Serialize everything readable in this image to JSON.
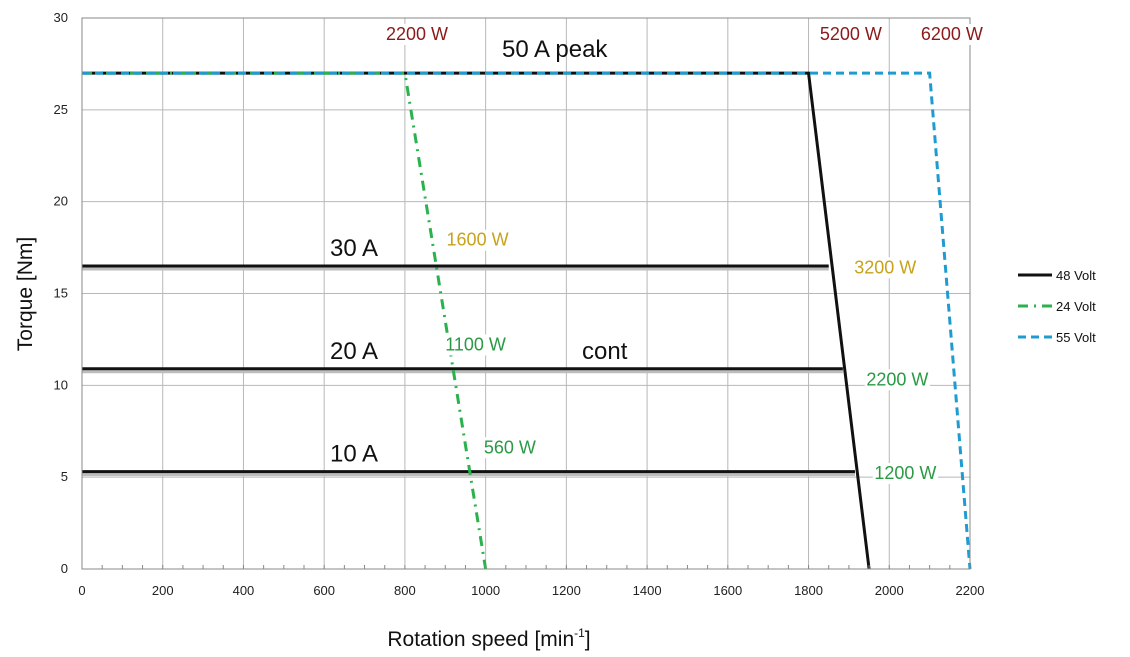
{
  "chart_data": {
    "type": "line",
    "xlabel": "Rotation speed [min",
    "xlabel_sup": "-1",
    "xlabel_close": "]",
    "ylabel": "Torque [Nm]",
    "xlim": [
      0,
      2200
    ],
    "ylim": [
      0,
      30
    ],
    "x_ticks": [
      "0",
      "200",
      "400",
      "600",
      "800",
      "1000",
      "1200",
      "1400",
      "1600",
      "1800",
      "2000",
      "2200"
    ],
    "y_ticks": [
      "0",
      "5",
      "10",
      "15",
      "20",
      "25",
      "30"
    ],
    "grid": true,
    "legend_position": "right",
    "series": [
      {
        "name": "48 Volt",
        "color": "#111111",
        "style": "solid",
        "points": [
          [
            0,
            27
          ],
          [
            1800,
            27
          ],
          [
            1950,
            0
          ]
        ]
      },
      {
        "name": "24 Volt",
        "color": "#2bb24c",
        "style": "dashdot",
        "points": [
          [
            0,
            27
          ],
          [
            800,
            27
          ],
          [
            1000,
            0
          ]
        ]
      },
      {
        "name": "55 Volt",
        "color": "#1f9bd0",
        "style": "dashed",
        "points": [
          [
            0,
            27
          ],
          [
            2100,
            27
          ],
          [
            2200,
            0
          ]
        ]
      }
    ],
    "current_lines": [
      {
        "label": "30 A",
        "y": 16.5,
        "x_end": 1850
      },
      {
        "label": "20 A",
        "y": 10.9,
        "x_end": 1885
      },
      {
        "label": "10 A",
        "y": 5.3,
        "x_end": 1915
      }
    ],
    "region_labels": {
      "peak": "50 A peak",
      "cont": "cont"
    },
    "power_labels": [
      {
        "text": "2200 W",
        "x": 830,
        "y": 28.8,
        "color": "#8b1a1a"
      },
      {
        "text": "5200 W",
        "x": 1905,
        "y": 28.8,
        "color": "#8b1a1a"
      },
      {
        "text": "6200 W",
        "x": 2155,
        "y": 28.8,
        "color": "#8b1a1a"
      },
      {
        "text": "1600 W",
        "x": 980,
        "y": 17.6,
        "color": "#c8a21a"
      },
      {
        "text": "3200 W",
        "x": 1990,
        "y": 16.1,
        "color": "#c8a21a"
      },
      {
        "text": "1100 W",
        "x": 975,
        "y": 11.9,
        "color": "#2a9a44"
      },
      {
        "text": "2200 W",
        "x": 2020,
        "y": 10.0,
        "color": "#2a9a44"
      },
      {
        "text": "560 W",
        "x": 1060,
        "y": 6.3,
        "color": "#2a9a44"
      },
      {
        "text": "1200 W",
        "x": 2040,
        "y": 4.9,
        "color": "#2a9a44"
      }
    ]
  }
}
